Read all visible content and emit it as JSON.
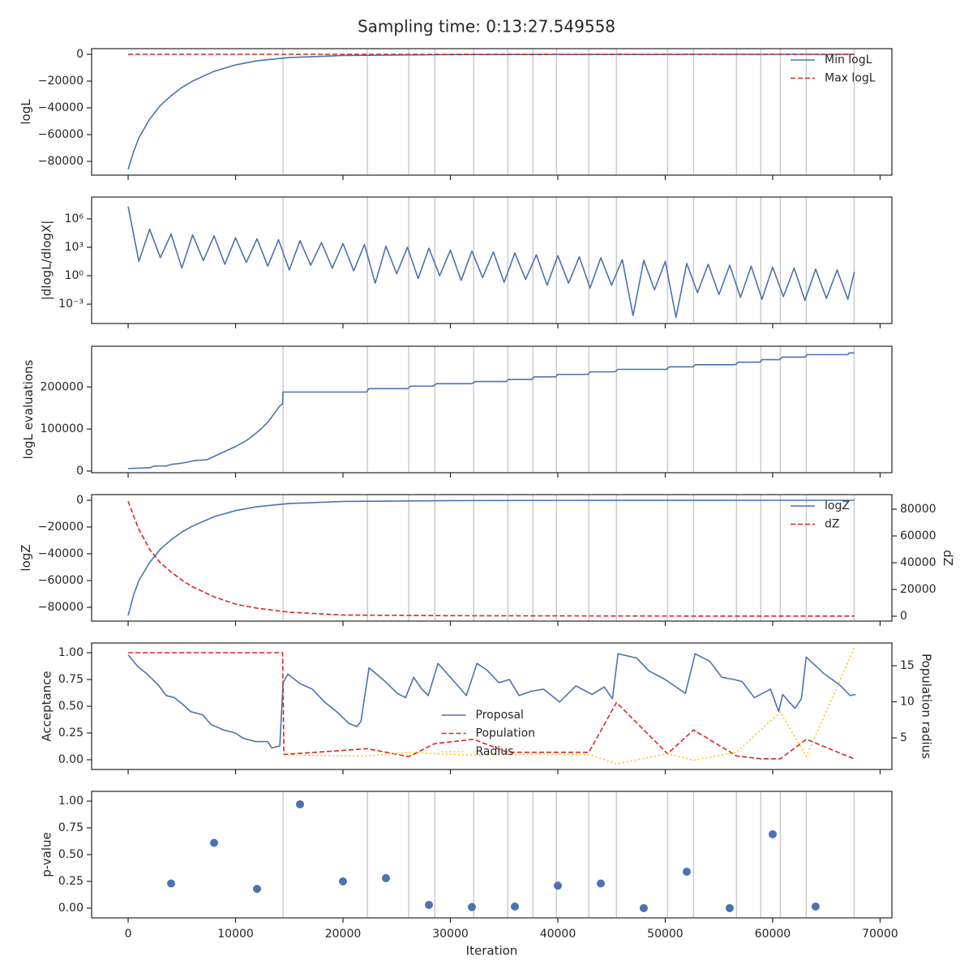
{
  "title": "Sampling time: 0:13:27.549558",
  "chart_data": [
    {
      "type": "line",
      "ylabel": "logL",
      "x": [
        0,
        500,
        1000,
        2000,
        3000,
        4000,
        5000,
        6000,
        8000,
        10000,
        12000,
        15000,
        20000,
        30000,
        40000,
        50000,
        60000,
        67600
      ],
      "series": [
        {
          "name": "Min logL",
          "color": "#4c72b0",
          "style": "solid",
          "values": [
            -86000,
            -73000,
            -62400,
            -48500,
            -38200,
            -30900,
            -24800,
            -20000,
            -12700,
            -7900,
            -4800,
            -2400,
            -900,
            -200,
            -50,
            -15,
            -5,
            0
          ]
        },
        {
          "name": "Max logL",
          "color": "#d62728",
          "style": "dashed",
          "values": [
            0,
            0,
            0,
            0,
            0,
            0,
            0,
            0,
            0,
            0,
            0,
            0,
            0,
            0,
            0,
            0,
            0,
            0
          ]
        }
      ],
      "xlim": [
        -3400,
        71100
      ],
      "xticks": [
        0,
        10000,
        20000,
        30000,
        40000,
        50000,
        60000,
        70000
      ],
      "xtick_labels": false,
      "ylim": [
        -90300,
        4240
      ],
      "yticks": [
        {
          "value": -80000,
          "label": "−80000"
        },
        {
          "value": -60000,
          "label": "−60000"
        },
        {
          "value": -40000,
          "label": "−40000"
        },
        {
          "value": -20000,
          "label": "−20000"
        },
        0
      ],
      "vlines": [
        14423,
        22276,
        26127,
        28543,
        32168,
        35339,
        37680,
        39870,
        42890,
        45458,
        50215,
        52632,
        56634,
        58899,
        60711,
        63128,
        67583
      ],
      "legend": "upper right"
    },
    {
      "type": "line",
      "ylabel": "|dlogL/dlogX|",
      "ylog": true,
      "x": [
        0,
        1000,
        2000,
        3000,
        4000,
        5000,
        6000,
        7000,
        8000,
        9000,
        10000,
        11000,
        12000,
        13000,
        14000,
        15000,
        16000,
        17000,
        18000,
        19000,
        20000,
        21000,
        22000,
        23000,
        24000,
        25000,
        26000,
        27000,
        28000,
        29000,
        30000,
        31000,
        32000,
        33000,
        34000,
        35000,
        36000,
        37000,
        38000,
        39000,
        40000,
        41000,
        42000,
        43000,
        44000,
        45000,
        46000,
        47000,
        48000,
        49000,
        50000,
        51000,
        52000,
        53000,
        54000,
        55000,
        56000,
        57000,
        58000,
        59000,
        60000,
        61000,
        62000,
        63000,
        64000,
        65000,
        66000,
        67000,
        67600
      ],
      "series": [
        {
          "name": null,
          "color": "#4c72b0",
          "style": "solid",
          "values": [
            20000000,
            32,
            79000,
            79,
            25000,
            6.3,
            20000,
            40,
            16000,
            16,
            10000,
            25,
            7900,
            10,
            6300,
            4,
            5000,
            13,
            3200,
            6.3,
            2500,
            3.2,
            2000,
            0.16,
            1300,
            1.6,
            1000,
            0.5,
            790,
            1,
            500,
            0.32,
            400,
            0.63,
            320,
            0.2,
            250,
            0.4,
            160,
            0.1,
            130,
            0.16,
            100,
            0.05,
            79,
            0.1,
            50,
            6.3e-05,
            40,
            0.032,
            32,
            4e-05,
            20,
            0.016,
            16,
            0.01,
            13,
            0.005,
            10,
            0.0032,
            7.9,
            0.0063,
            6.3,
            0.0025,
            5,
            0.004,
            4,
            0.0032,
            2.5
          ]
        }
      ],
      "xlim": [
        -3400,
        71100
      ],
      "xticks": [
        0,
        10000,
        20000,
        30000,
        40000,
        50000,
        60000,
        70000
      ],
      "xtick_labels": false,
      "ylim": [
        9e-06,
        200000000
      ],
      "yticks": [
        {
          "value": 0.001,
          "label": "10⁻³"
        },
        {
          "value": 1,
          "label": "10⁰"
        },
        {
          "value": 1000,
          "label": "10³"
        },
        {
          "value": 1000000,
          "label": "10⁶"
        }
      ],
      "vlines": [
        14423,
        22276,
        26127,
        28543,
        32168,
        35339,
        37680,
        39870,
        42890,
        45458,
        50215,
        52632,
        56634,
        58899,
        60711,
        63128,
        67583
      ]
    },
    {
      "type": "line",
      "ylabel": "logL evaluations",
      "x": [
        0,
        2040,
        2420,
        3550,
        3930,
        5060,
        6190,
        7330,
        9970,
        11100,
        12230,
        12990,
        14120,
        14380,
        14420,
        22200,
        22400,
        26000,
        26300,
        28400,
        28700,
        32000,
        32300,
        35200,
        35400,
        37600,
        37800,
        39800,
        40000,
        42800,
        43000,
        45300,
        45600,
        50100,
        50400,
        52600,
        52800,
        56500,
        56800,
        58800,
        59000,
        60600,
        60900,
        63000,
        63200,
        67000,
        67100,
        67600
      ],
      "series": [
        {
          "name": null,
          "color": "#4c72b0",
          "style": "solid",
          "values": [
            6000,
            8000,
            12000,
            12000,
            15500,
            19000,
            25000,
            27000,
            58000,
            74000,
            97000,
            116000,
            155000,
            160000,
            188000,
            188000,
            196000,
            196000,
            202000,
            202000,
            208000,
            208000,
            213000,
            213000,
            218000,
            218000,
            224000,
            224000,
            230000,
            230000,
            236000,
            236000,
            242000,
            242000,
            248000,
            248000,
            253000,
            253000,
            259000,
            259000,
            265000,
            265000,
            271000,
            271000,
            277000,
            277000,
            281000,
            281000
          ]
        }
      ],
      "xlim": [
        -3400,
        71100
      ],
      "xticks": [
        0,
        10000,
        20000,
        30000,
        40000,
        50000,
        60000,
        70000
      ],
      "xtick_labels": false,
      "ylim": [
        -3900,
        297000
      ],
      "yticks": [
        0,
        100000,
        200000
      ],
      "vlines": [
        14423,
        22276,
        26127,
        28543,
        32168,
        35339,
        37680,
        39870,
        42890,
        45458,
        50215,
        52632,
        56634,
        58899,
        60711,
        63128,
        67583
      ]
    },
    {
      "type": "line",
      "ylabel": "logZ",
      "y2label": "dZ",
      "x": [
        0,
        500,
        1000,
        2000,
        3000,
        4000,
        5000,
        6000,
        8000,
        10000,
        12000,
        15000,
        20000,
        30000,
        40000,
        50000,
        60000,
        67600
      ],
      "series": [
        {
          "name": "logZ",
          "color": "#4c72b0",
          "style": "solid",
          "values": [
            -86000,
            -71000,
            -60000,
            -46500,
            -36500,
            -29500,
            -23800,
            -19200,
            -12300,
            -7700,
            -4800,
            -2400,
            -900,
            -250,
            -80,
            -30,
            -10,
            -5
          ]
        },
        {
          "name": "dZ",
          "color": "#d62728",
          "style": "dashed",
          "axis": "y2",
          "values": [
            86000,
            75000,
            65000,
            50000,
            40000,
            33000,
            27000,
            22000,
            14500,
            9000,
            6000,
            3000,
            900,
            400,
            250,
            150,
            100,
            80
          ]
        }
      ],
      "xlim": [
        -3400,
        71100
      ],
      "xticks": [
        0,
        10000,
        20000,
        30000,
        40000,
        50000,
        60000,
        70000
      ],
      "xtick_labels": false,
      "ylim": [
        -90300,
        4240
      ],
      "yticks": [
        {
          "value": -80000,
          "label": "−80000"
        },
        {
          "value": -60000,
          "label": "−60000"
        },
        {
          "value": -40000,
          "label": "−40000"
        },
        {
          "value": -20000,
          "label": "−20000"
        },
        0
      ],
      "y2lim": [
        -3640,
        90900
      ],
      "y2ticks": [
        0,
        20000,
        40000,
        60000,
        80000
      ],
      "vlines": [
        14423,
        22276,
        26127,
        28543,
        32168,
        35339,
        37680,
        39870,
        42890,
        45458,
        50215,
        52632,
        56634,
        58899,
        60711,
        63128,
        67583
      ],
      "legend": "upper right"
    },
    {
      "type": "line",
      "ylabel": "Acceptance",
      "y2label": "Population radius",
      "series": [
        {
          "name": "Proposal",
          "color": "#4c72b0",
          "style": "solid",
          "x": [
            0,
            906,
            1661,
            2794,
            3549,
            4304,
            5059,
            5814,
            6947,
            7702,
            8835,
            9967,
            10722,
            11855,
            12987,
            13365,
            14120,
            14423,
            14876,
            16009,
            17141,
            18274,
            19406,
            20539,
            21294,
            21672,
            22427,
            23937,
            25070,
            25825,
            26580,
            27335,
            27939,
            28845,
            30355,
            31488,
            32470,
            33376,
            34508,
            35490,
            36396,
            37529,
            38661,
            40171,
            41682,
            43192,
            44324,
            45079,
            45608,
            47345,
            48477,
            49987,
            51875,
            52781,
            54140,
            55272,
            56405,
            57160,
            58293,
            59803,
            60558,
            60935,
            62068,
            62672,
            63125,
            64711,
            66221,
            67203,
            67732
          ],
          "values": [
            0.98,
            0.87,
            0.81,
            0.7,
            0.6,
            0.58,
            0.52,
            0.45,
            0.42,
            0.33,
            0.28,
            0.25,
            0.2,
            0.17,
            0.17,
            0.11,
            0.13,
            0.72,
            0.8,
            0.71,
            0.66,
            0.54,
            0.45,
            0.34,
            0.31,
            0.36,
            0.86,
            0.73,
            0.62,
            0.58,
            0.77,
            0.66,
            0.6,
            0.9,
            0.73,
            0.6,
            0.9,
            0.84,
            0.72,
            0.75,
            0.6,
            0.64,
            0.66,
            0.54,
            0.69,
            0.61,
            0.68,
            0.57,
            0.99,
            0.95,
            0.83,
            0.75,
            0.62,
            0.99,
            0.92,
            0.77,
            0.75,
            0.73,
            0.58,
            0.66,
            0.45,
            0.61,
            0.48,
            0.57,
            0.96,
            0.81,
            0.7,
            0.6,
            0.61
          ]
        },
        {
          "name": "Population",
          "color": "#d62728",
          "style": "dashed",
          "axis": "y2",
          "x": [
            0,
            14380,
            14500,
            22276,
            26127,
            28543,
            32168,
            35339,
            39870,
            42890,
            45458,
            50215,
            52632,
            56634,
            58899,
            60711,
            63128,
            67583
          ],
          "values": [
            16.8,
            16.8,
            2.7,
            3.5,
            2.4,
            4.2,
            4.8,
            3.0,
            3.0,
            3.0,
            9.9,
            2.8,
            6.1,
            2.5,
            2.1,
            2.1,
            4.8,
            2.1
          ]
        },
        {
          "name": "Radius",
          "color": "#f5c518",
          "style": "dotted",
          "axis": "y2",
          "x": [
            14500,
            22276,
            26127,
            28543,
            32168,
            35339,
            39870,
            42890,
            45458,
            50215,
            52632,
            56634,
            60711,
            63128,
            67583
          ],
          "values": [
            2.6,
            2.5,
            3.0,
            2.8,
            2.6,
            2.7,
            2.7,
            2.7,
            1.4,
            2.8,
            1.9,
            3.0,
            8.6,
            2.4,
            17.4
          ]
        }
      ],
      "xlim": [
        -3400,
        71100
      ],
      "xticks": [
        0,
        10000,
        20000,
        30000,
        40000,
        50000,
        60000,
        70000
      ],
      "xtick_labels": false,
      "ylim": [
        -0.091,
        1.091
      ],
      "yticks": [
        {
          "value": 0,
          "label": "0.00"
        },
        {
          "value": 0.25,
          "label": "0.25"
        },
        {
          "value": 0.5,
          "label": "0.50"
        },
        {
          "value": 0.75,
          "label": "0.75"
        },
        {
          "value": 1,
          "label": "1.00"
        }
      ],
      "y2lim": [
        0.62,
        18.15
      ],
      "y2ticks": [
        5,
        10,
        15
      ],
      "legend": "lower center"
    },
    {
      "type": "scatter",
      "ylabel": "p-value",
      "xlabel": "Iteration",
      "color": "#4c72b0",
      "x": [
        4000,
        8000,
        12000,
        16000,
        20000,
        24000,
        28000,
        32000,
        36000,
        40000,
        44000,
        48000,
        52000,
        56000,
        60000,
        64000
      ],
      "values": [
        0.23,
        0.61,
        0.18,
        0.97,
        0.25,
        0.28,
        0.03,
        0.01,
        0.015,
        0.21,
        0.23,
        0.0,
        0.34,
        0.0,
        0.69,
        0.015
      ],
      "xlim": [
        -3400,
        71100
      ],
      "xticks": [
        0,
        10000,
        20000,
        30000,
        40000,
        50000,
        60000,
        70000
      ],
      "xtick_labels": true,
      "ylim": [
        -0.091,
        1.091
      ],
      "yticks": [
        {
          "value": 0,
          "label": "0.00"
        },
        {
          "value": 0.25,
          "label": "0.25"
        },
        {
          "value": 0.5,
          "label": "0.50"
        },
        {
          "value": 0.75,
          "label": "0.75"
        },
        {
          "value": 1,
          "label": "1.00"
        }
      ],
      "vlines": [
        14423,
        22276,
        26127,
        28543,
        32168,
        35339,
        37680,
        39870,
        42890,
        45458,
        50215,
        52632,
        56634,
        58899,
        60711,
        63128,
        67583
      ]
    }
  ]
}
